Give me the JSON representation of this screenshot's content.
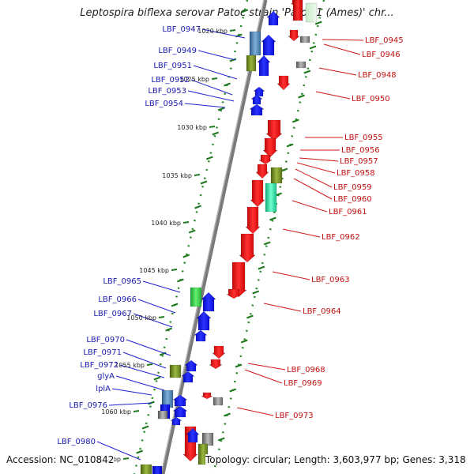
{
  "title": "Leptospira biflexa serovar Patoc strain 'Patoc 1 (Ames)' chr...",
  "footer": {
    "accession": "Accession: NC_010842",
    "topology": "Topology: circular; Length: 3,603,977 bp; Genes: 3,318"
  },
  "ruler": [
    {
      "label": "1020 kbp"
    },
    {
      "label": "1025 kbp"
    },
    {
      "label": "1030 kbp"
    },
    {
      "label": "1035 kbp"
    },
    {
      "label": "1040 kbp"
    },
    {
      "label": "1045 kbp"
    },
    {
      "label": "1050 kbp"
    },
    {
      "label": "1055 kbp"
    },
    {
      "label": "1060 kbp"
    },
    {
      "label": "kbp"
    }
  ],
  "labels_left": [
    {
      "text": "LBF_0947"
    },
    {
      "text": "LBF_0949"
    },
    {
      "text": "LBF_0951"
    },
    {
      "text": "LBF_0952"
    },
    {
      "text": "LBF_0953"
    },
    {
      "text": "LBF_0954"
    },
    {
      "text": "LBF_0965"
    },
    {
      "text": "LBF_0966"
    },
    {
      "text": "LBF_0967"
    },
    {
      "text": "LBF_0970"
    },
    {
      "text": "LBF_0971"
    },
    {
      "text": "LBF_0972"
    },
    {
      "text": "glyA"
    },
    {
      "text": "lplA"
    },
    {
      "text": "LBF_0976"
    },
    {
      "text": "LBF_0980"
    }
  ],
  "labels_right": [
    {
      "text": "LBF_0945"
    },
    {
      "text": "LBF_0946"
    },
    {
      "text": "LBF_0948"
    },
    {
      "text": "LBF_0950"
    },
    {
      "text": "LBF_0955"
    },
    {
      "text": "LBF_0956"
    },
    {
      "text": "LBF_0957"
    },
    {
      "text": "LBF_0958"
    },
    {
      "text": "LBF_0959"
    },
    {
      "text": "LBF_0960"
    },
    {
      "text": "LBF_0961"
    },
    {
      "text": "LBF_0962"
    },
    {
      "text": "LBF_0963"
    },
    {
      "text": "LBF_0964"
    },
    {
      "text": "LBF_0968"
    },
    {
      "text": "LBF_0969"
    },
    {
      "text": "LBF_0973"
    }
  ],
  "colors": {
    "forward_gene": "#0a10e8",
    "reverse_gene": "#ee1010",
    "rna": "#2fd64a",
    "steel": "#4a82b4",
    "olive": "#6f8a1e",
    "gray": "#8a8a8a",
    "mint": "#34e8a8",
    "tick": "#2a8a2a",
    "backbone": "#8a8a8a"
  }
}
